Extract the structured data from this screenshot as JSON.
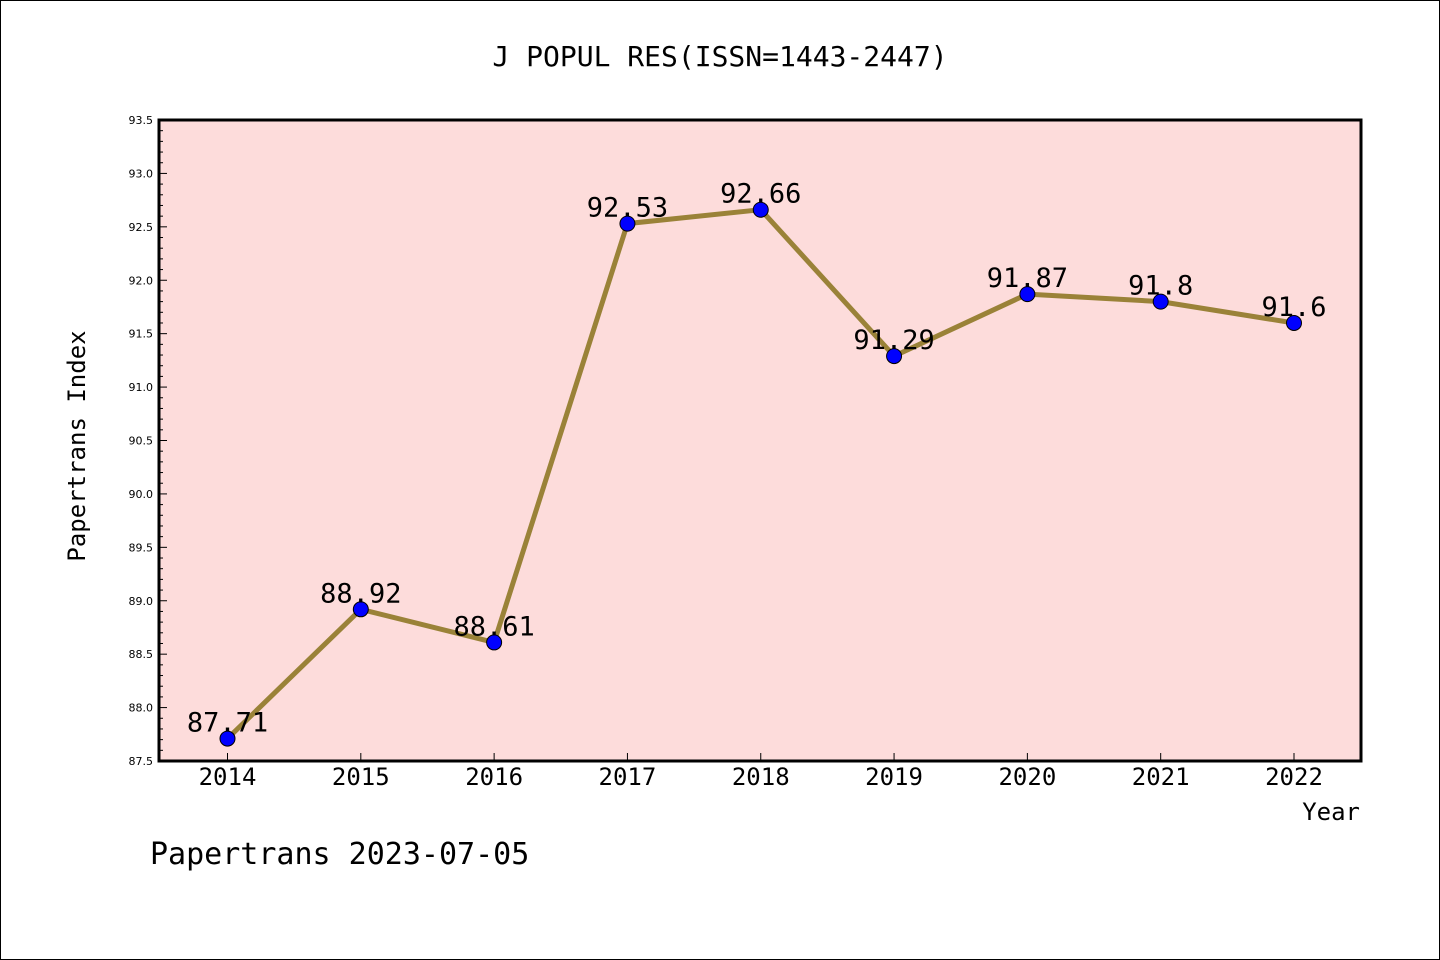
{
  "chart_data": {
    "type": "line",
    "title": "J POPUL RES(ISSN=1443-2447)",
    "xlabel": "Year",
    "ylabel": "Papertrans Index",
    "x": [
      "2014",
      "2015",
      "2016",
      "2017",
      "2018",
      "2019",
      "2020",
      "2021",
      "2022"
    ],
    "series": [
      {
        "values": [
          87.71,
          88.92,
          88.61,
          92.53,
          92.66,
          91.29,
          91.87,
          91.8,
          91.6
        ],
        "labels": [
          "87.71",
          "88.92",
          "88.61",
          "92.53",
          "92.66",
          "91.29",
          "91.87",
          "91.8",
          "91.6"
        ]
      }
    ],
    "ylim": [
      87.5,
      93.5
    ],
    "yticks": [
      "87.5",
      "88.0",
      "88.5",
      "89.0",
      "89.5",
      "90.0",
      "90.5",
      "91.0",
      "91.5",
      "92.0",
      "92.5",
      "93.0",
      "93.5"
    ],
    "grid": false,
    "legend": "none",
    "colors": {
      "plot_background": "#fddcdb",
      "line": "#9a8238",
      "marker": "#0000ff"
    }
  },
  "footer": "Papertrans 2023-07-05"
}
